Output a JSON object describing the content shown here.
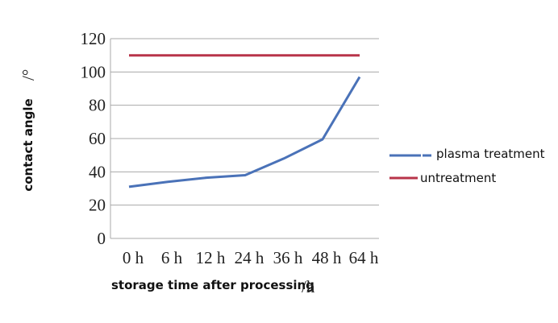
{
  "chart_data": {
    "type": "line",
    "title": "",
    "xlabel": "storage time after processing",
    "xlabel_unit": "/h",
    "ylabel": "contact angle",
    "ylabel_unit": "/°",
    "categories": [
      "0 h",
      "6 h",
      "12 h",
      "24 h",
      "36 h",
      "48 h",
      "64 h"
    ],
    "series": [
      {
        "name": "plasma treatment",
        "color": "#4a72b8",
        "values": [
          31,
          34,
          36.5,
          38,
          48,
          59.5,
          97
        ]
      },
      {
        "name": "untreatment",
        "color": "#b8344a",
        "values": [
          110,
          110,
          110,
          110,
          110,
          110,
          110
        ]
      }
    ],
    "ylim": [
      0,
      120
    ],
    "yticks": [
      0,
      20,
      40,
      60,
      80,
      100,
      120
    ],
    "grid": true,
    "legend_position": "right"
  },
  "legend": {
    "items": [
      {
        "label": "plasma treatment",
        "color": "#4a72b8"
      },
      {
        "label": "untreatment",
        "color": "#b8344a"
      }
    ]
  }
}
